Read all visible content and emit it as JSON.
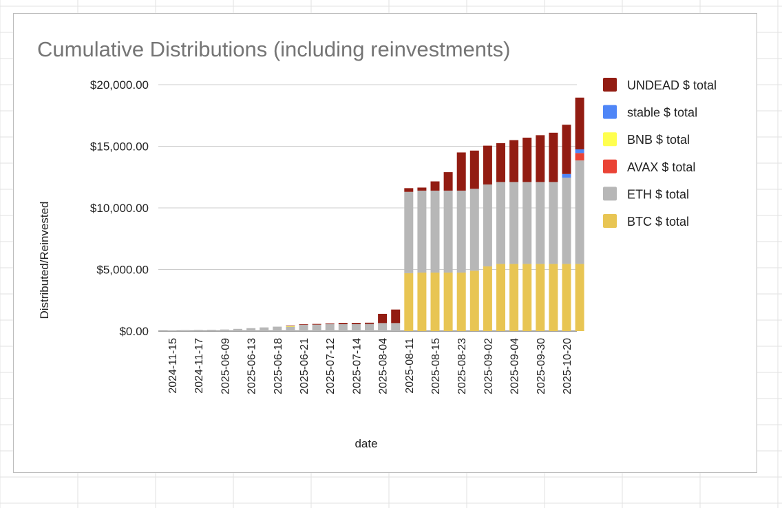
{
  "chart_data": {
    "type": "bar",
    "stacked": true,
    "title": "Cumulative Distributions (including reinvestments)",
    "xlabel": "date",
    "ylabel": "Distributed/Reinvested",
    "ylim": [
      0,
      20000
    ],
    "y_ticks": [
      0,
      5000,
      10000,
      15000,
      20000
    ],
    "y_tick_labels": [
      "$0.00",
      "$5,000.00",
      "$10,000.00",
      "$15,000.00",
      "$20,000.00"
    ],
    "grid": true,
    "legend_position": "right",
    "x_tick_labels_shown": [
      "2024-11-15",
      "2024-11-17",
      "2025-06-09",
      "2025-06-13",
      "2025-06-18",
      "2025-06-21",
      "2025-07-12",
      "2025-07-14",
      "2025-08-04",
      "2025-08-11",
      "2025-08-15",
      "2025-08-23",
      "2025-09-02",
      "2025-09-04",
      "2025-09-30",
      "2025-10-20"
    ],
    "x_tick_every": 2,
    "bar_count": 32,
    "series": [
      {
        "name": "BTC $ total",
        "color": "#e8c553",
        "values": [
          0,
          0,
          0,
          0,
          0,
          0,
          0,
          0,
          0,
          0,
          0,
          0,
          0,
          0,
          0,
          0,
          0,
          0,
          4700,
          4750,
          4750,
          4750,
          4750,
          4900,
          5250,
          5450,
          5450,
          5450,
          5450,
          5450,
          5450,
          5450
        ]
      },
      {
        "name": "ETH $ total",
        "color": "#b7b7b7",
        "values": [
          60,
          80,
          100,
          110,
          130,
          180,
          240,
          300,
          360,
          350,
          500,
          520,
          560,
          570,
          570,
          580,
          650,
          650,
          6600,
          6650,
          6650,
          6650,
          6650,
          6650,
          6650,
          6650,
          6650,
          6650,
          6650,
          6650,
          7000,
          8400
        ]
      },
      {
        "name": "AVAX $ total",
        "color": "#ea4335",
        "values": [
          0,
          0,
          0,
          0,
          0,
          0,
          0,
          0,
          0,
          0,
          0,
          0,
          0,
          0,
          0,
          0,
          0,
          0,
          0,
          0,
          0,
          0,
          0,
          0,
          0,
          0,
          0,
          0,
          0,
          0,
          0,
          600
        ]
      },
      {
        "name": "BNB $ total",
        "color": "#ffff4f",
        "values": [
          0,
          0,
          0,
          0,
          0,
          0,
          0,
          0,
          0,
          50,
          0,
          0,
          0,
          0,
          0,
          0,
          0,
          0,
          0,
          0,
          0,
          0,
          0,
          0,
          0,
          0,
          0,
          0,
          0,
          0,
          0,
          0
        ]
      },
      {
        "name": "stable $ total",
        "color": "#4f86f7",
        "values": [
          0,
          0,
          0,
          0,
          0,
          0,
          0,
          0,
          0,
          0,
          0,
          0,
          0,
          0,
          0,
          0,
          0,
          0,
          0,
          0,
          0,
          0,
          0,
          0,
          0,
          0,
          0,
          0,
          0,
          0,
          300,
          300
        ]
      },
      {
        "name": "UNDEAD $ total",
        "color": "#921c12",
        "values": [
          0,
          0,
          0,
          0,
          0,
          0,
          0,
          0,
          0,
          50,
          50,
          60,
          60,
          100,
          100,
          100,
          750,
          1100,
          300,
          250,
          750,
          1500,
          3100,
          3100,
          3150,
          3150,
          3400,
          3600,
          3800,
          4000,
          4000,
          4200
        ]
      }
    ],
    "legend_order": [
      "UNDEAD $ total",
      "stable $ total",
      "BNB $ total",
      "AVAX $ total",
      "ETH $ total",
      "BTC $ total"
    ]
  }
}
